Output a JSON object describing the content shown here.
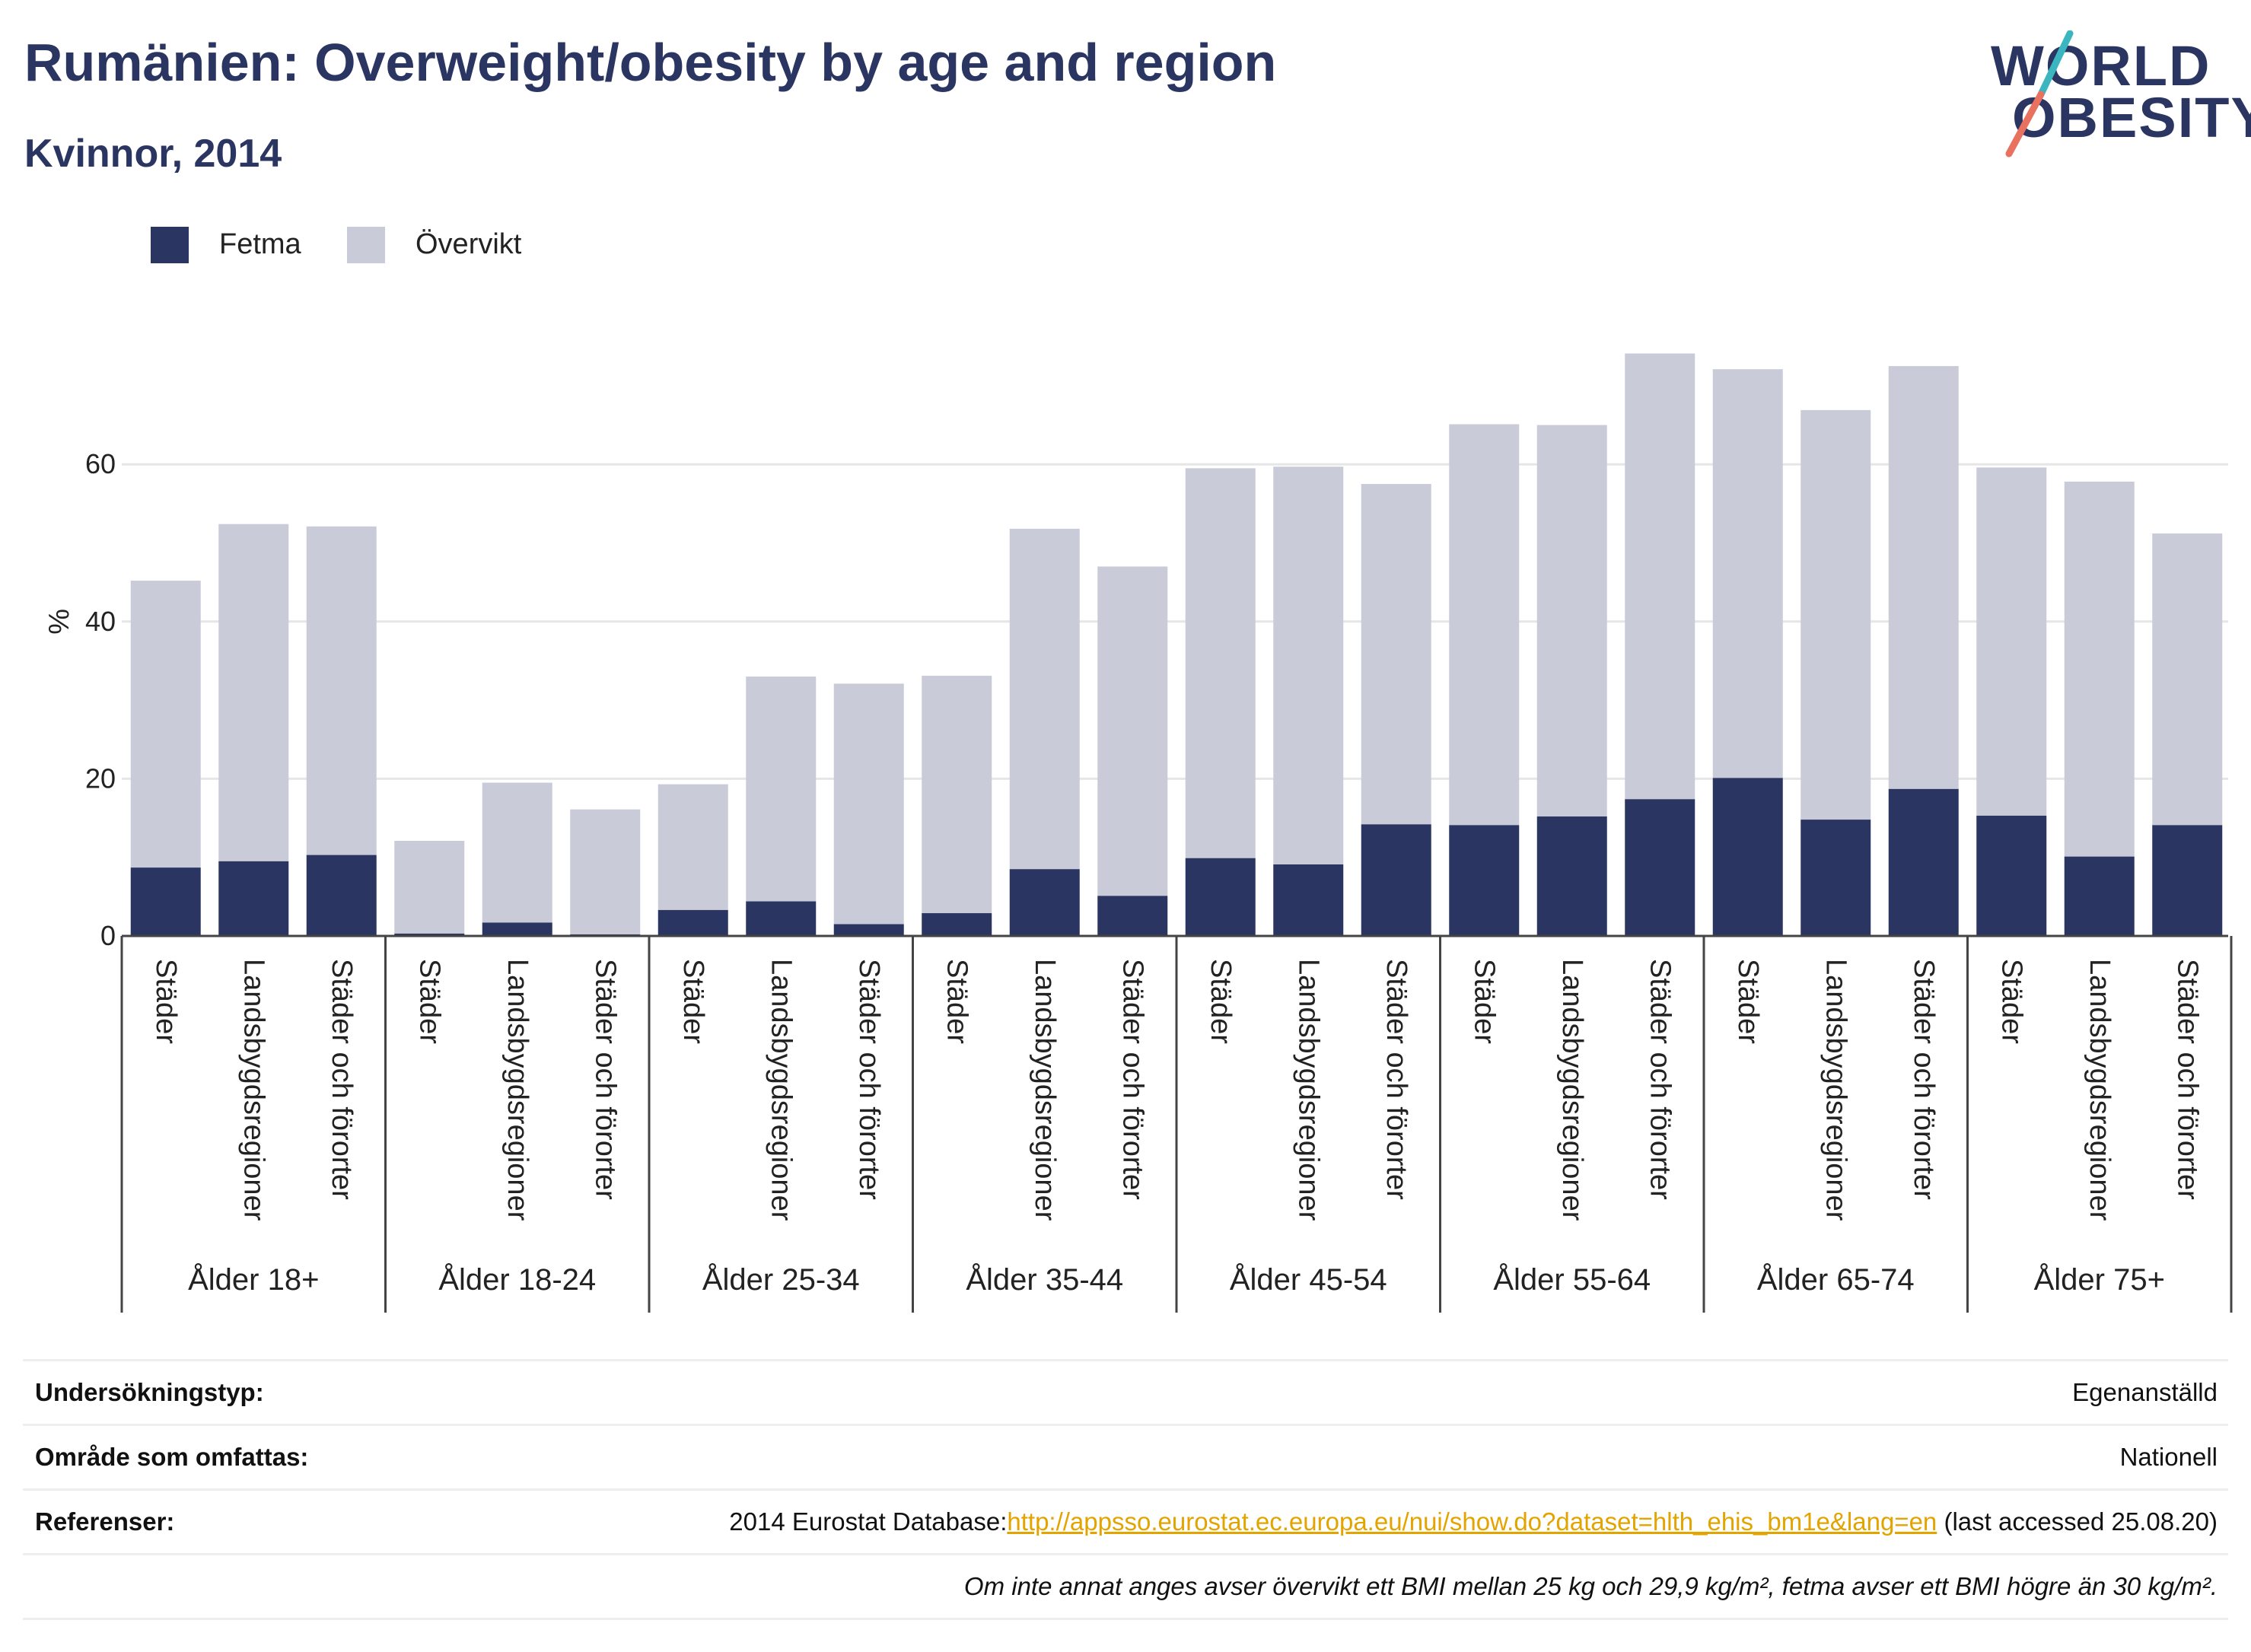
{
  "header": {
    "title": "Rumänien: Overweight/obesity by age and region",
    "subtitle": "Kvinnor, 2014"
  },
  "logo": {
    "line1": "WORLD",
    "line2": "OBESITY"
  },
  "colors": {
    "fetma": "#2b3562",
    "overvikt": "#c9cbd8",
    "title": "#2a3562",
    "accent_teal": "#3bb6c1",
    "accent_coral": "#e8715f",
    "link": "#e3a400"
  },
  "legend": {
    "fetma": "Fetma",
    "overvikt": "Övervikt"
  },
  "chart_data": {
    "type": "bar",
    "stacked": true,
    "ylabel": "%",
    "ylim": [
      0,
      80
    ],
    "yticks": [
      0,
      20,
      40,
      60
    ],
    "grid": true,
    "legend_position": "top-left",
    "groups": [
      {
        "label": "Ålder 18+",
        "categories": [
          "Städer",
          "Landsbygdsregioner",
          "Städer och förorter"
        ]
      },
      {
        "label": "Ålder 18-24",
        "categories": [
          "Städer",
          "Landsbygdsregioner",
          "Städer och förorter"
        ]
      },
      {
        "label": "Ålder 25-34",
        "categories": [
          "Städer",
          "Landsbygdsregioner",
          "Städer och förorter"
        ]
      },
      {
        "label": "Ålder 35-44",
        "categories": [
          "Städer",
          "Landsbygdsregioner",
          "Städer och förorter"
        ]
      },
      {
        "label": "Ålder 45-54",
        "categories": [
          "Städer",
          "Landsbygdsregioner",
          "Städer och förorter"
        ]
      },
      {
        "label": "Ålder 55-64",
        "categories": [
          "Städer",
          "Landsbygdsregioner",
          "Städer och förorter"
        ]
      },
      {
        "label": "Ålder 65-74",
        "categories": [
          "Städer",
          "Landsbygdsregioner",
          "Städer och förorter"
        ]
      },
      {
        "label": "Ålder 75+",
        "categories": [
          "Städer",
          "Landsbygdsregioner",
          "Städer och förorter"
        ]
      }
    ],
    "series": [
      {
        "name": "Fetma",
        "values": [
          8.7,
          9.5,
          10.3,
          0.3,
          1.7,
          0.2,
          3.3,
          4.4,
          1.5,
          2.9,
          8.5,
          5.1,
          9.9,
          9.1,
          14.2,
          14.1,
          15.2,
          17.4,
          20.1,
          14.8,
          18.7,
          15.3,
          10.1,
          14.1
        ]
      },
      {
        "name": "Övervikt",
        "values": [
          36.5,
          42.9,
          41.8,
          11.8,
          17.8,
          15.9,
          16.0,
          28.6,
          30.6,
          30.2,
          43.3,
          41.9,
          49.6,
          50.6,
          43.3,
          51.0,
          49.8,
          56.7,
          52.0,
          52.1,
          53.8,
          44.3,
          47.7,
          37.1
        ]
      }
    ]
  },
  "info": {
    "survey_label": "Undersökningstyp:",
    "survey_value": "Egenanställd",
    "area_label": "Område som omfattas:",
    "area_value": "Nationell",
    "references_label": "Referenser:",
    "references_prefix": "2014 Eurostat Database:",
    "references_link": "http://appsso.eurostat.ec.europa.eu/nui/show.do?dataset=hlth_ehis_bm1e&lang=en",
    "references_suffix": " (last accessed 25.08.20)",
    "note": "Om inte annat anges avser övervikt ett BMI mellan 25 kg och 29,9 kg/m², fetma avser ett BMI högre än 30 kg/m²."
  }
}
